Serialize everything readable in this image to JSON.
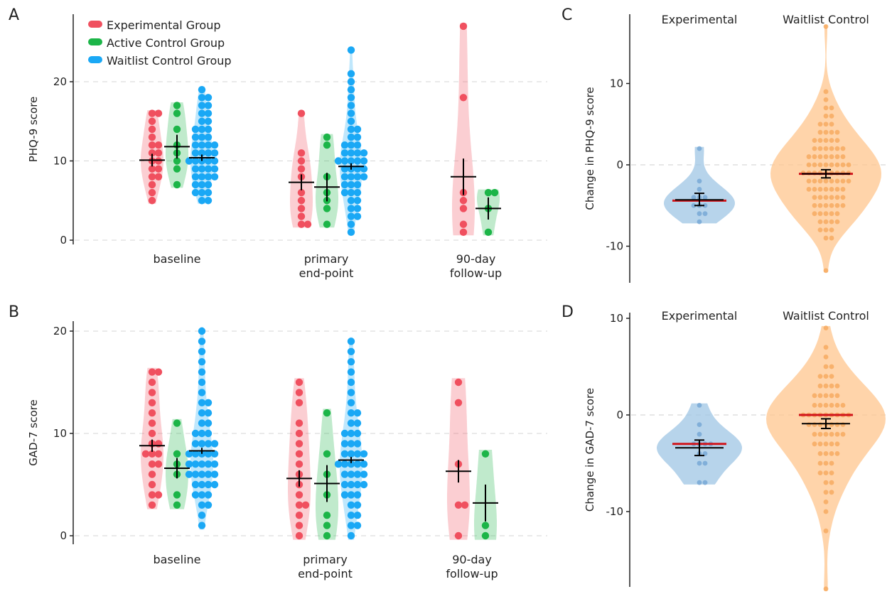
{
  "colors": {
    "experimental": "#f0505f",
    "active_control": "#1cb548",
    "waitlist_control": "#1aa8f5",
    "violin_c_blue": "#9fc6e4",
    "violin_c_orange": "#ffc68e",
    "mean_line": "#d1141a",
    "error_bar": "#000000"
  },
  "legend": [
    "Experimental Group",
    "Active Control Group",
    "Waitlist Control Group"
  ],
  "chart_data": [
    {
      "panel": "A",
      "type": "violin-swarm",
      "ylabel": "PHQ-9 score",
      "ylim": [
        0,
        27
      ],
      "yticks": [
        0,
        10,
        20
      ],
      "grid": "horizontal dashed",
      "legend_placement": "top-left",
      "categories": [
        {
          "label": "baseline",
          "lines": [
            "baseline"
          ]
        },
        {
          "label": "primary end-point",
          "lines": [
            "primary",
            "end-point"
          ]
        },
        {
          "label": "90-day follow-up",
          "lines": [
            "90-day",
            "follow-up"
          ]
        }
      ],
      "groups": [
        {
          "name": "Experimental Group",
          "color_key": "experimental",
          "means": [
            10.1,
            7.3,
            8.0
          ],
          "errors": [
            0.8,
            1.0,
            2.3
          ],
          "points": [
            [
              5,
              6,
              7,
              8,
              8,
              9,
              9,
              10,
              10,
              11,
              11,
              12,
              12,
              13,
              14,
              15,
              16,
              16
            ],
            [
              2,
              2,
              3,
              4,
              5,
              6,
              8,
              9,
              10,
              11,
              16
            ],
            [
              1,
              2,
              4,
              5,
              6,
              18,
              27
            ]
          ]
        },
        {
          "name": "Active Control Group",
          "color_key": "active_control",
          "means": [
            11.8,
            6.7,
            4.0
          ],
          "errors": [
            1.5,
            1.8,
            1.4
          ],
          "points": [
            [
              7,
              9,
              10,
              11,
              12,
              14,
              16,
              17
            ],
            [
              2,
              4,
              5,
              6,
              8,
              12,
              13
            ],
            [
              1,
              4,
              6,
              6
            ]
          ]
        },
        {
          "name": "Waitlist Control Group",
          "color_key": "waitlist_control",
          "means": [
            10.4,
            9.3,
            null
          ],
          "errors": [
            0.4,
            0.4,
            null
          ],
          "points": [
            [
              5,
              5,
              6,
              6,
              6,
              7,
              7,
              7,
              8,
              8,
              8,
              8,
              9,
              9,
              9,
              9,
              10,
              10,
              10,
              10,
              10,
              11,
              11,
              11,
              11,
              12,
              12,
              12,
              12,
              13,
              13,
              13,
              14,
              14,
              14,
              15,
              15,
              16,
              16,
              17,
              17,
              18,
              18,
              19
            ],
            [
              1,
              2,
              3,
              3,
              4,
              4,
              5,
              5,
              6,
              6,
              6,
              7,
              7,
              7,
              8,
              8,
              8,
              8,
              9,
              9,
              9,
              9,
              10,
              10,
              10,
              10,
              10,
              11,
              11,
              11,
              11,
              12,
              12,
              12,
              13,
              13,
              14,
              14,
              15,
              16,
              17,
              18,
              19,
              20,
              21,
              24
            ],
            []
          ]
        }
      ]
    },
    {
      "panel": "B",
      "type": "violin-swarm",
      "ylabel": "GAD-7 score",
      "ylim": [
        0,
        21
      ],
      "yticks": [
        0,
        10,
        20
      ],
      "grid": "horizontal dashed",
      "categories": [
        {
          "label": "baseline",
          "lines": [
            "baseline"
          ]
        },
        {
          "label": "primary end-point",
          "lines": [
            "primary",
            "end-point"
          ]
        },
        {
          "label": "90-day follow-up",
          "lines": [
            "90-day",
            "follow-up"
          ]
        }
      ],
      "groups": [
        {
          "name": "Experimental Group",
          "color_key": "experimental",
          "means": [
            8.8,
            5.6,
            6.3
          ],
          "errors": [
            0.6,
            0.8,
            1.1
          ],
          "points": [
            [
              3,
              4,
              4,
              5,
              6,
              7,
              7,
              8,
              8,
              8,
              9,
              9,
              10,
              11,
              12,
              13,
              14,
              15,
              16,
              16
            ],
            [
              0,
              1,
              2,
              3,
              3,
              4,
              5,
              6,
              7,
              8,
              9,
              10,
              11,
              13,
              14,
              15
            ],
            [
              0,
              3,
              3,
              7,
              13,
              15
            ]
          ]
        },
        {
          "name": "Active Control Group",
          "color_key": "active_control",
          "means": [
            6.6,
            5.1,
            3.2
          ],
          "errors": [
            1.0,
            1.8,
            1.8
          ],
          "points": [
            [
              3,
              4,
              6,
              7,
              8,
              11
            ],
            [
              0,
              1,
              2,
              4,
              6,
              8,
              12
            ],
            [
              0,
              1,
              8
            ]
          ]
        },
        {
          "name": "Waitlist Control Group",
          "color_key": "waitlist_control",
          "means": [
            8.3,
            7.4,
            null
          ],
          "errors": [
            0.3,
            0.3,
            null
          ],
          "points": [
            [
              1,
              2,
              3,
              3,
              4,
              4,
              4,
              5,
              5,
              5,
              5,
              6,
              6,
              6,
              6,
              6,
              7,
              7,
              7,
              7,
              7,
              8,
              8,
              8,
              8,
              8,
              9,
              9,
              9,
              9,
              10,
              10,
              10,
              11,
              11,
              12,
              12,
              13,
              13,
              14,
              15,
              16,
              17,
              18,
              19,
              20
            ],
            [
              0,
              1,
              1,
              2,
              2,
              3,
              3,
              4,
              4,
              4,
              5,
              5,
              5,
              5,
              6,
              6,
              6,
              6,
              7,
              7,
              7,
              7,
              7,
              8,
              8,
              8,
              8,
              9,
              9,
              9,
              10,
              10,
              10,
              11,
              11,
              12,
              12,
              13,
              14,
              15,
              16,
              17,
              18,
              19
            ],
            []
          ]
        }
      ]
    },
    {
      "panel": "C",
      "type": "violin-strip",
      "ylabel": "Change in PHQ-9 score",
      "ylim": [
        -14.5,
        18.5
      ],
      "yticks": [
        -10,
        0,
        10
      ],
      "grid": "zero line dashed",
      "categories": [
        "Experimental",
        "Waitlist Control"
      ],
      "groups": [
        {
          "name": "Experimental",
          "color_key": "violin_c_blue",
          "mean": -4.3,
          "median": -4.4,
          "ci": [
            -5.0,
            -3.5
          ],
          "points": [
            2,
            -2,
            -3,
            -4,
            -4,
            -4,
            -5,
            -5,
            -5,
            -6,
            -6,
            -7
          ]
        },
        {
          "name": "Waitlist Control",
          "color_key": "violin_c_orange",
          "mean": -1.1,
          "median": -1.1,
          "ci": [
            -1.6,
            -0.6
          ],
          "points": [
            17,
            9,
            8,
            7,
            7,
            6,
            6,
            5,
            5,
            5,
            4,
            4,
            4,
            4,
            3,
            3,
            3,
            3,
            3,
            2,
            2,
            2,
            2,
            2,
            2,
            1,
            1,
            1,
            1,
            1,
            1,
            1,
            0,
            0,
            0,
            0,
            0,
            0,
            0,
            0,
            -1,
            -1,
            -1,
            -1,
            -1,
            -1,
            -1,
            -1,
            -1,
            -2,
            -2,
            -2,
            -2,
            -2,
            -2,
            -2,
            -2,
            -3,
            -3,
            -3,
            -3,
            -3,
            -3,
            -3,
            -4,
            -4,
            -4,
            -4,
            -4,
            -4,
            -5,
            -5,
            -5,
            -5,
            -5,
            -5,
            -6,
            -6,
            -6,
            -6,
            -6,
            -7,
            -7,
            -7,
            -7,
            -8,
            -8,
            -8,
            -9,
            -9,
            -13
          ]
        }
      ]
    },
    {
      "panel": "D",
      "type": "violin-strip",
      "ylabel": "Change in GAD-7 score",
      "ylim": [
        -18,
        10.5
      ],
      "yticks": [
        -10,
        0,
        10
      ],
      "grid": "zero line dashed",
      "categories": [
        "Experimental",
        "Waitlist Control"
      ],
      "groups": [
        {
          "name": "Experimental",
          "color_key": "violin_c_blue",
          "mean": -3.4,
          "median": -3.0,
          "ci": [
            -4.2,
            -2.6
          ],
          "points": [
            1,
            -1,
            -2,
            -3,
            -3,
            -3,
            -3,
            -4,
            -4,
            -5,
            -5,
            -7,
            -7
          ]
        },
        {
          "name": "Waitlist Control",
          "color_key": "violin_c_orange",
          "mean": -0.9,
          "median": 0.0,
          "ci": [
            -1.4,
            -0.4
          ],
          "points": [
            9,
            7,
            6,
            5,
            5,
            4,
            4,
            4,
            3,
            3,
            3,
            3,
            2,
            2,
            2,
            2,
            2,
            1,
            1,
            1,
            1,
            1,
            1,
            0,
            0,
            0,
            0,
            0,
            0,
            0,
            0,
            0,
            -1,
            -1,
            -1,
            -1,
            -1,
            -1,
            -1,
            -2,
            -2,
            -2,
            -2,
            -2,
            -2,
            -3,
            -3,
            -3,
            -3,
            -3,
            -4,
            -4,
            -4,
            -4,
            -5,
            -5,
            -5,
            -6,
            -6,
            -6,
            -7,
            -7,
            -8,
            -8,
            -9,
            -10,
            -12,
            -18
          ]
        }
      ]
    }
  ]
}
